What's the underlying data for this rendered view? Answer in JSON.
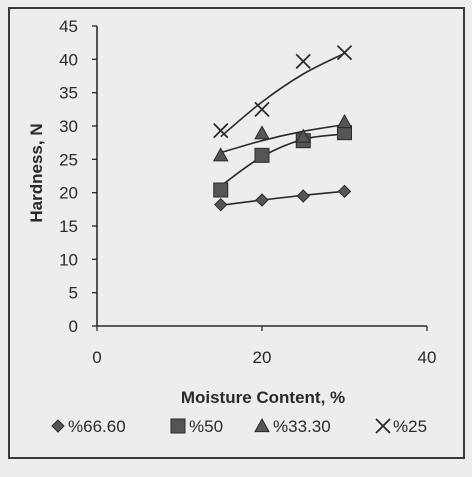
{
  "chart_data": {
    "type": "scatter",
    "title": "",
    "xlabel": "Moisture Content, %",
    "ylabel": "Hardness, N",
    "xlim": [
      0,
      40
    ],
    "ylim": [
      0,
      45
    ],
    "xticks": [
      0,
      20,
      40
    ],
    "yticks": [
      0,
      5,
      10,
      15,
      20,
      25,
      30,
      35,
      40,
      45
    ],
    "grid": false,
    "legend_position": "bottom",
    "trendlines": true,
    "series": [
      {
        "name": "%66.60",
        "marker": "diamond",
        "x": [
          15,
          20,
          25,
          30
        ],
        "y": [
          18.2,
          18.9,
          19.5,
          20.2
        ],
        "trend_y": [
          18.1,
          18.9,
          19.6,
          20.2
        ]
      },
      {
        "name": "%50",
        "marker": "square",
        "x": [
          15,
          20,
          25,
          30
        ],
        "y": [
          20.4,
          25.6,
          27.8,
          29.0
        ],
        "trend_y": [
          21.0,
          25.4,
          28.0,
          28.8
        ]
      },
      {
        "name": "%33.30",
        "marker": "triangle",
        "x": [
          15,
          20,
          25,
          30
        ],
        "y": [
          25.6,
          28.9,
          28.4,
          30.6
        ],
        "trend_y": [
          26.0,
          27.8,
          29.2,
          30.2
        ]
      },
      {
        "name": "%25",
        "marker": "x",
        "x": [
          15,
          20,
          25,
          30
        ],
        "y": [
          29.3,
          32.5,
          39.7,
          41.0
        ],
        "trend_y": [
          28.4,
          33.6,
          37.8,
          40.9
        ]
      }
    ],
    "colors": {
      "ink": "#2a2a2a",
      "marker_fill": "#555555",
      "background": "#ededeb"
    }
  }
}
